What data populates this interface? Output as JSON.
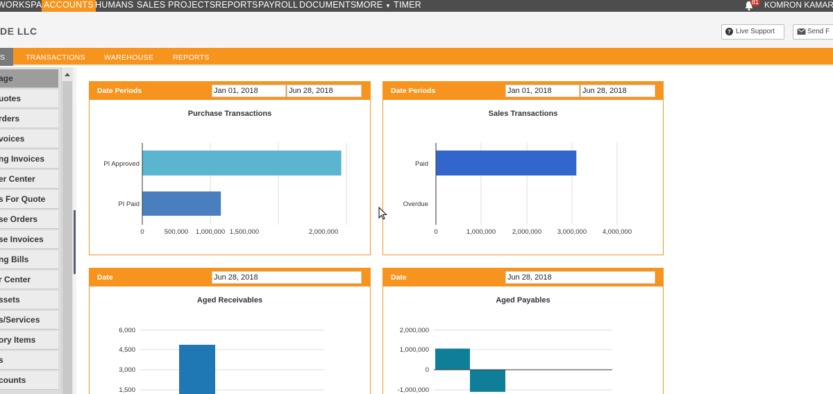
{
  "topnav": {
    "items": [
      "WORKSPACE",
      "ACCOUNTS",
      "HUMANS",
      "SALES",
      "PROJECTS",
      "REPORTS",
      "PAYROLL",
      "DOCUMENTS",
      "MORE",
      "TIMER"
    ],
    "active": "ACCOUNTS",
    "notification_count": "81",
    "user_name": "KOMRON KAMAR"
  },
  "header": {
    "company": "DE LLC",
    "live_support": "Live Support",
    "send": "Send F"
  },
  "subnav": {
    "active_label": "S",
    "items": [
      "TRANSACTIONS",
      "WAREHOUSE",
      "REPORTS"
    ]
  },
  "sidebar": {
    "items": [
      "age",
      "uotes",
      "rders",
      "voices",
      "ng Invoices",
      "er Center",
      "s For Quote",
      "se Orders",
      "se Invoices",
      "ng Bills",
      "r Center",
      "ssets",
      "s/Services",
      "ory Items",
      "s",
      "counts"
    ]
  },
  "panels": {
    "purchase": {
      "label": "Date Periods",
      "from": "Jan 01, 2018",
      "to": "Jun 28, 2018"
    },
    "sales": {
      "label": "Date Periods",
      "from": "Jan 01, 2018",
      "to": "Jun 28, 2018"
    },
    "receivables": {
      "label": "Date",
      "date": "Jun 28, 2018"
    },
    "payables": {
      "label": "Date",
      "date": "Jun 28, 2018"
    }
  },
  "chart_data": [
    {
      "type": "bar",
      "orientation": "horizontal",
      "title": "Purchase Transactions",
      "categories": [
        "PI Approved",
        "PI Paid"
      ],
      "values": [
        1950000,
        770000
      ],
      "colors": [
        "#5bb4d0",
        "#4a7fbf"
      ],
      "xticks": [
        "0",
        "500,000",
        "1,000,000",
        "1,500,000",
        "2,000,000"
      ],
      "xlim": [
        0,
        2000000
      ]
    },
    {
      "type": "bar",
      "orientation": "horizontal",
      "title": "Sales Transactions",
      "categories": [
        "Paid",
        "Overdue"
      ],
      "values": [
        3100000,
        0
      ],
      "colors": [
        "#3366cc",
        "#3366cc"
      ],
      "xticks": [
        "0",
        "1,000,000",
        "2,000,000",
        "3,000,000",
        "4,000,000"
      ],
      "xlim": [
        0,
        4000000
      ]
    },
    {
      "type": "bar",
      "title": "Aged Receivables",
      "values": [
        4900
      ],
      "colors": [
        "#1f77b4"
      ],
      "yticks": [
        "6,000",
        "4,500",
        "3,000",
        "1,500"
      ],
      "ylim_visible": [
        1500,
        6000
      ]
    },
    {
      "type": "bar",
      "title": "Aged Payables",
      "values": [
        1050000,
        -1100000
      ],
      "colors": [
        "#0f7f99",
        "#0f7f99"
      ],
      "yticks": [
        "2,000,000",
        "1,000,000",
        "0",
        "-1,000,000"
      ],
      "ylim_visible": [
        -1000000,
        2000000
      ]
    }
  ]
}
